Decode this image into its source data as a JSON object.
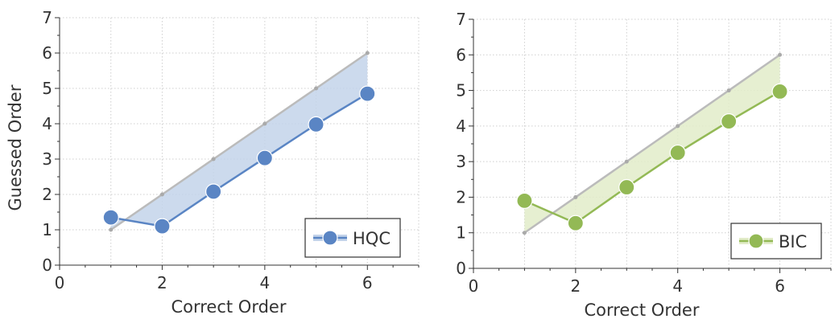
{
  "chart_data": [
    {
      "type": "line",
      "xlabel": "Correct Order",
      "ylabel": "Guessed Order",
      "xlim": [
        0,
        7
      ],
      "ylim": [
        0,
        7
      ],
      "xticks": [
        0,
        2,
        4,
        6
      ],
      "yticks": [
        0,
        1,
        2,
        3,
        4,
        5,
        6,
        7
      ],
      "grid": true,
      "legend": "bottom-right",
      "reference": {
        "x": [
          1,
          2,
          3,
          4,
          5,
          6
        ],
        "y": [
          1,
          2,
          3,
          4,
          5,
          6
        ],
        "color": "#bbbbbb"
      },
      "series": [
        {
          "name": "HQC",
          "x": [
            1,
            2,
            3,
            4,
            5,
            6
          ],
          "y": [
            1.35,
            1.1,
            2.08,
            3.03,
            3.98,
            4.85
          ],
          "color": "#5a85c4",
          "fill": "#c3d3ea"
        }
      ]
    },
    {
      "type": "line",
      "xlabel": "Correct Order",
      "ylabel": "",
      "xlim": [
        0,
        7
      ],
      "ylim": [
        0,
        7
      ],
      "xticks": [
        0,
        2,
        4,
        6
      ],
      "yticks": [
        0,
        1,
        2,
        3,
        4,
        5,
        6,
        7
      ],
      "grid": true,
      "legend": "bottom-right",
      "reference": {
        "x": [
          1,
          2,
          3,
          4,
          5,
          6
        ],
        "y": [
          1,
          2,
          3,
          4,
          5,
          6
        ],
        "color": "#bbbbbb"
      },
      "series": [
        {
          "name": "BIC",
          "x": [
            1,
            2,
            3,
            4,
            5,
            6
          ],
          "y": [
            1.9,
            1.27,
            2.28,
            3.25,
            4.13,
            4.97
          ],
          "color": "#93b955",
          "fill": "#e2ecc9"
        }
      ]
    }
  ]
}
